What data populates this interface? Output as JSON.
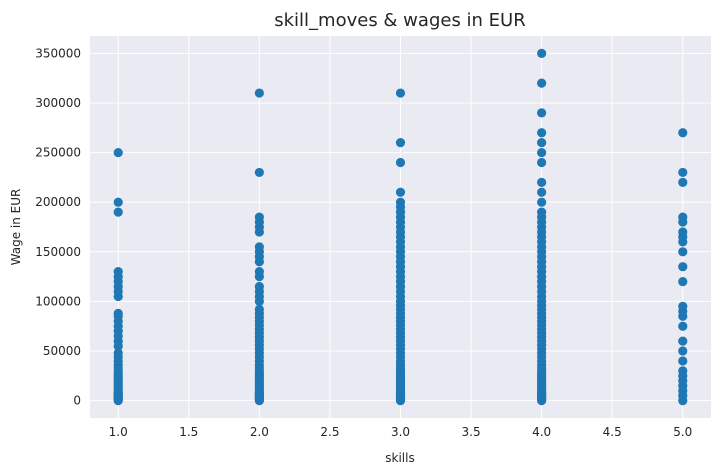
{
  "chart_data": {
    "type": "scatter",
    "title": "skill_moves & wages in EUR",
    "xlabel": "skills",
    "ylabel": "Wage in EUR",
    "xlim": [
      0.8,
      5.2
    ],
    "ylim": [
      -17500,
      367500
    ],
    "xticks": [
      1.0,
      1.5,
      2.0,
      2.5,
      3.0,
      3.5,
      4.0,
      4.5,
      5.0
    ],
    "xtick_labels": [
      "1.0",
      "1.5",
      "2.0",
      "2.5",
      "3.0",
      "3.5",
      "4.0",
      "4.5",
      "5.0"
    ],
    "yticks": [
      0,
      50000,
      100000,
      150000,
      200000,
      250000,
      300000,
      350000
    ],
    "ytick_labels": [
      "0",
      "50000",
      "100000",
      "150000",
      "200000",
      "250000",
      "300000",
      "350000"
    ],
    "grid": true,
    "colors": {
      "background": "#eaeaf2",
      "grid": "#ffffff",
      "marker": "#1f77b4"
    },
    "series": [
      {
        "points": [
          [
            1,
            0
          ],
          [
            1,
            1000
          ],
          [
            1,
            2000
          ],
          [
            1,
            3000
          ],
          [
            1,
            4000
          ],
          [
            1,
            5000
          ],
          [
            1,
            6000
          ],
          [
            1,
            7000
          ],
          [
            1,
            8000
          ],
          [
            1,
            9000
          ],
          [
            1,
            10000
          ],
          [
            1,
            12000
          ],
          [
            1,
            14000
          ],
          [
            1,
            16000
          ],
          [
            1,
            18000
          ],
          [
            1,
            20000
          ],
          [
            1,
            22000
          ],
          [
            1,
            24000
          ],
          [
            1,
            26000
          ],
          [
            1,
            28000
          ],
          [
            1,
            30000
          ],
          [
            1,
            33000
          ],
          [
            1,
            36000
          ],
          [
            1,
            40000
          ],
          [
            1,
            44000
          ],
          [
            1,
            48000
          ],
          [
            1,
            55000
          ],
          [
            1,
            60000
          ],
          [
            1,
            65000
          ],
          [
            1,
            70000
          ],
          [
            1,
            75000
          ],
          [
            1,
            80000
          ],
          [
            1,
            85000
          ],
          [
            1,
            88000
          ],
          [
            1,
            105000
          ],
          [
            1,
            110000
          ],
          [
            1,
            115000
          ],
          [
            1,
            120000
          ],
          [
            1,
            125000
          ],
          [
            1,
            130000
          ],
          [
            1,
            190000
          ],
          [
            1,
            200000
          ],
          [
            1,
            250000
          ],
          [
            2,
            0
          ],
          [
            2,
            1000
          ],
          [
            2,
            2000
          ],
          [
            2,
            3000
          ],
          [
            2,
            4000
          ],
          [
            2,
            5000
          ],
          [
            2,
            6000
          ],
          [
            2,
            7000
          ],
          [
            2,
            8000
          ],
          [
            2,
            9000
          ],
          [
            2,
            10000
          ],
          [
            2,
            12000
          ],
          [
            2,
            14000
          ],
          [
            2,
            16000
          ],
          [
            2,
            18000
          ],
          [
            2,
            20000
          ],
          [
            2,
            22000
          ],
          [
            2,
            24000
          ],
          [
            2,
            26000
          ],
          [
            2,
            28000
          ],
          [
            2,
            30000
          ],
          [
            2,
            33000
          ],
          [
            2,
            36000
          ],
          [
            2,
            40000
          ],
          [
            2,
            44000
          ],
          [
            2,
            48000
          ],
          [
            2,
            52000
          ],
          [
            2,
            56000
          ],
          [
            2,
            60000
          ],
          [
            2,
            64000
          ],
          [
            2,
            68000
          ],
          [
            2,
            72000
          ],
          [
            2,
            76000
          ],
          [
            2,
            80000
          ],
          [
            2,
            84000
          ],
          [
            2,
            88000
          ],
          [
            2,
            92000
          ],
          [
            2,
            100000
          ],
          [
            2,
            105000
          ],
          [
            2,
            110000
          ],
          [
            2,
            115000
          ],
          [
            2,
            125000
          ],
          [
            2,
            130000
          ],
          [
            2,
            140000
          ],
          [
            2,
            145000
          ],
          [
            2,
            150000
          ],
          [
            2,
            155000
          ],
          [
            2,
            170000
          ],
          [
            2,
            175000
          ],
          [
            2,
            180000
          ],
          [
            2,
            185000
          ],
          [
            2,
            230000
          ],
          [
            2,
            310000
          ],
          [
            3,
            0
          ],
          [
            3,
            1000
          ],
          [
            3,
            2000
          ],
          [
            3,
            3000
          ],
          [
            3,
            4000
          ],
          [
            3,
            5000
          ],
          [
            3,
            6000
          ],
          [
            3,
            7000
          ],
          [
            3,
            8000
          ],
          [
            3,
            9000
          ],
          [
            3,
            10000
          ],
          [
            3,
            12000
          ],
          [
            3,
            14000
          ],
          [
            3,
            16000
          ],
          [
            3,
            18000
          ],
          [
            3,
            20000
          ],
          [
            3,
            22000
          ],
          [
            3,
            24000
          ],
          [
            3,
            26000
          ],
          [
            3,
            28000
          ],
          [
            3,
            30000
          ],
          [
            3,
            33000
          ],
          [
            3,
            36000
          ],
          [
            3,
            40000
          ],
          [
            3,
            44000
          ],
          [
            3,
            48000
          ],
          [
            3,
            52000
          ],
          [
            3,
            56000
          ],
          [
            3,
            60000
          ],
          [
            3,
            64000
          ],
          [
            3,
            68000
          ],
          [
            3,
            72000
          ],
          [
            3,
            76000
          ],
          [
            3,
            80000
          ],
          [
            3,
            84000
          ],
          [
            3,
            88000
          ],
          [
            3,
            92000
          ],
          [
            3,
            96000
          ],
          [
            3,
            100000
          ],
          [
            3,
            105000
          ],
          [
            3,
            110000
          ],
          [
            3,
            115000
          ],
          [
            3,
            120000
          ],
          [
            3,
            125000
          ],
          [
            3,
            130000
          ],
          [
            3,
            135000
          ],
          [
            3,
            140000
          ],
          [
            3,
            145000
          ],
          [
            3,
            150000
          ],
          [
            3,
            155000
          ],
          [
            3,
            160000
          ],
          [
            3,
            165000
          ],
          [
            3,
            170000
          ],
          [
            3,
            175000
          ],
          [
            3,
            180000
          ],
          [
            3,
            185000
          ],
          [
            3,
            190000
          ],
          [
            3,
            195000
          ],
          [
            3,
            200000
          ],
          [
            3,
            210000
          ],
          [
            3,
            240000
          ],
          [
            3,
            260000
          ],
          [
            3,
            310000
          ],
          [
            4,
            0
          ],
          [
            4,
            1000
          ],
          [
            4,
            2000
          ],
          [
            4,
            3000
          ],
          [
            4,
            4000
          ],
          [
            4,
            5000
          ],
          [
            4,
            6000
          ],
          [
            4,
            7000
          ],
          [
            4,
            8000
          ],
          [
            4,
            9000
          ],
          [
            4,
            10000
          ],
          [
            4,
            12000
          ],
          [
            4,
            14000
          ],
          [
            4,
            16000
          ],
          [
            4,
            18000
          ],
          [
            4,
            20000
          ],
          [
            4,
            22000
          ],
          [
            4,
            24000
          ],
          [
            4,
            26000
          ],
          [
            4,
            28000
          ],
          [
            4,
            30000
          ],
          [
            4,
            33000
          ],
          [
            4,
            36000
          ],
          [
            4,
            40000
          ],
          [
            4,
            44000
          ],
          [
            4,
            48000
          ],
          [
            4,
            52000
          ],
          [
            4,
            56000
          ],
          [
            4,
            60000
          ],
          [
            4,
            64000
          ],
          [
            4,
            68000
          ],
          [
            4,
            72000
          ],
          [
            4,
            76000
          ],
          [
            4,
            80000
          ],
          [
            4,
            84000
          ],
          [
            4,
            88000
          ],
          [
            4,
            92000
          ],
          [
            4,
            96000
          ],
          [
            4,
            100000
          ],
          [
            4,
            105000
          ],
          [
            4,
            110000
          ],
          [
            4,
            115000
          ],
          [
            4,
            120000
          ],
          [
            4,
            125000
          ],
          [
            4,
            130000
          ],
          [
            4,
            135000
          ],
          [
            4,
            140000
          ],
          [
            4,
            145000
          ],
          [
            4,
            150000
          ],
          [
            4,
            155000
          ],
          [
            4,
            160000
          ],
          [
            4,
            165000
          ],
          [
            4,
            170000
          ],
          [
            4,
            175000
          ],
          [
            4,
            180000
          ],
          [
            4,
            185000
          ],
          [
            4,
            190000
          ],
          [
            4,
            200000
          ],
          [
            4,
            210000
          ],
          [
            4,
            220000
          ],
          [
            4,
            240000
          ],
          [
            4,
            250000
          ],
          [
            4,
            260000
          ],
          [
            4,
            270000
          ],
          [
            4,
            290000
          ],
          [
            4,
            320000
          ],
          [
            4,
            350000
          ],
          [
            5,
            0
          ],
          [
            5,
            5000
          ],
          [
            5,
            10000
          ],
          [
            5,
            15000
          ],
          [
            5,
            20000
          ],
          [
            5,
            25000
          ],
          [
            5,
            30000
          ],
          [
            5,
            40000
          ],
          [
            5,
            50000
          ],
          [
            5,
            60000
          ],
          [
            5,
            75000
          ],
          [
            5,
            85000
          ],
          [
            5,
            90000
          ],
          [
            5,
            95000
          ],
          [
            5,
            120000
          ],
          [
            5,
            135000
          ],
          [
            5,
            150000
          ],
          [
            5,
            160000
          ],
          [
            5,
            165000
          ],
          [
            5,
            170000
          ],
          [
            5,
            180000
          ],
          [
            5,
            185000
          ],
          [
            5,
            220000
          ],
          [
            5,
            230000
          ],
          [
            5,
            270000
          ]
        ]
      }
    ]
  }
}
